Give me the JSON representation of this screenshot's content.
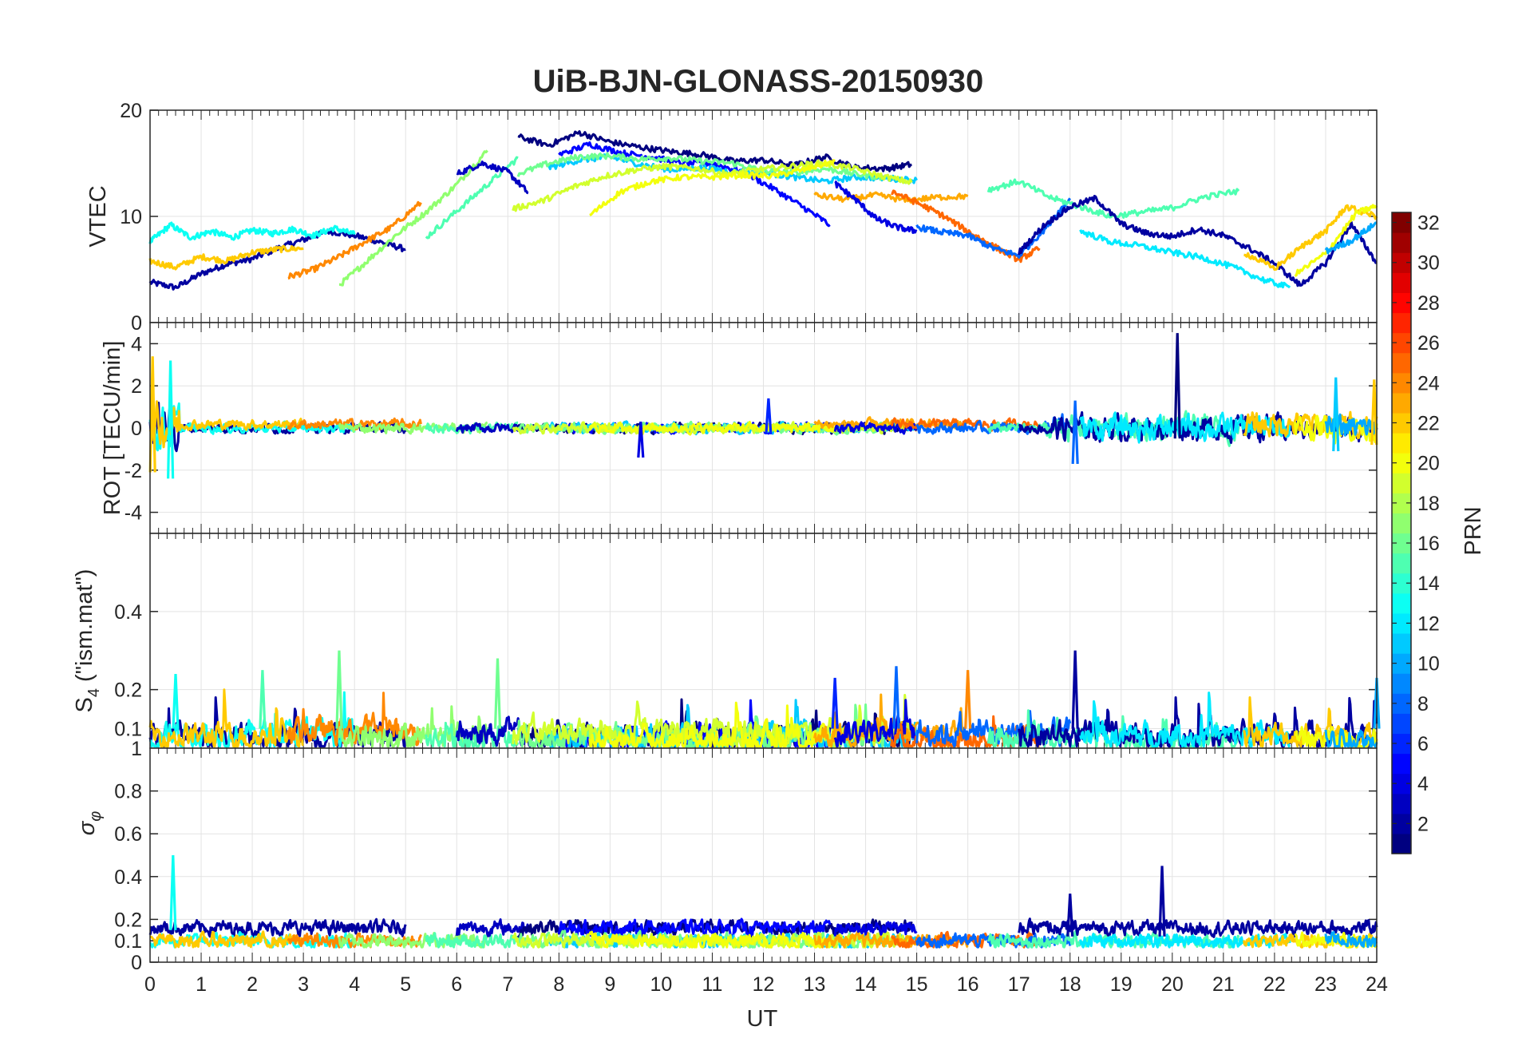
{
  "chart_data": {
    "type": "line",
    "title": "UiB-BJN-GLONASS-20150930",
    "xlabel": "UT",
    "xlim": [
      0,
      24
    ],
    "xticks": [
      "0",
      "1",
      "2",
      "3",
      "4",
      "5",
      "6",
      "7",
      "8",
      "9",
      "10",
      "11",
      "12",
      "13",
      "14",
      "15",
      "16",
      "17",
      "18",
      "19",
      "20",
      "21",
      "22",
      "23",
      "24"
    ],
    "grid": true,
    "panels": [
      {
        "id": "vtec",
        "ylabel": "VTEC",
        "ylim": [
          0,
          20
        ],
        "yticks": [
          0,
          10,
          20
        ],
        "ytick_labels": [
          "0",
          "10",
          "20"
        ],
        "series": [
          {
            "prn": 2,
            "x": [
              0,
              0.5,
              1,
              1.5,
              2,
              2.5,
              3,
              3.5,
              4,
              4.5,
              5
            ],
            "y": [
              3.8,
              3.3,
              4.6,
              5.5,
              6.0,
              7.0,
              7.8,
              8.6,
              8.2,
              7.6,
              6.9
            ]
          },
          {
            "prn": 13,
            "x": [
              0,
              0.4,
              0.8,
              1.2,
              1.6,
              2.0,
              2.4,
              2.8,
              3.2,
              3.6,
              4.0
            ],
            "y": [
              7.6,
              9.2,
              8.0,
              8.6,
              8.0,
              8.7,
              8.4,
              8.8,
              8.2,
              8.9,
              8.3
            ]
          },
          {
            "prn": 22,
            "x": [
              0,
              0.5,
              1,
              1.5,
              2,
              2.5,
              3
            ],
            "y": [
              5.8,
              5.2,
              6.2,
              5.8,
              6.6,
              6.9,
              7.0
            ]
          },
          {
            "prn": 24,
            "x": [
              2.7,
              3.2,
              3.7,
              4.2,
              4.7,
              5.3
            ],
            "y": [
              4.3,
              5.0,
              6.2,
              7.6,
              8.9,
              11.3
            ]
          },
          {
            "prn": 17,
            "x": [
              3.7,
              4.2,
              4.8,
              5.4,
              6.0,
              6.6
            ],
            "y": [
              3.5,
              5.6,
              8.2,
              10.4,
              13.0,
              16.2
            ]
          },
          {
            "prn": 15,
            "x": [
              5.4,
              6.0,
              6.6,
              7.2
            ],
            "y": [
              8.0,
              10.5,
              13.0,
              15.5
            ]
          },
          {
            "prn": 3,
            "x": [
              6.0,
              6.5,
              7.0,
              7.4
            ],
            "y": [
              14.0,
              15.0,
              14.2,
              12.2
            ]
          },
          {
            "prn": 1,
            "x": [
              7.2,
              7.8,
              8.4,
              9.0,
              9.6,
              10.2,
              10.8,
              11.4,
              12.0,
              12.6,
              13.2,
              13.8,
              14.4,
              14.9
            ],
            "y": [
              17.5,
              16.7,
              17.9,
              17.0,
              16.5,
              16.1,
              15.8,
              15.2,
              15.3,
              14.8,
              15.6,
              14.6,
              14.5,
              14.9
            ]
          },
          {
            "prn": 5,
            "x": [
              8.0,
              8.6,
              9.2,
              9.8,
              10.4,
              11.0,
              11.6,
              12.2,
              12.8,
              13.3
            ],
            "y": [
              15.8,
              16.8,
              16.0,
              15.6,
              15.0,
              15.0,
              14.2,
              12.6,
              10.8,
              9.2
            ]
          },
          {
            "prn": 11,
            "x": [
              7.8,
              8.4,
              9.0,
              9.6,
              10.2,
              10.8,
              11.4,
              12.0,
              12.6,
              13.2,
              13.8,
              14.4,
              15.0
            ],
            "y": [
              14.6,
              15.3,
              15.6,
              14.9,
              14.4,
              14.6,
              14.2,
              14.1,
              13.7,
              13.3,
              13.7,
              13.6,
              13.4
            ]
          },
          {
            "prn": 16,
            "x": [
              7.2,
              7.8,
              8.4,
              9.0,
              9.6,
              10.2,
              10.8,
              11.4,
              12.0,
              12.6,
              13.2,
              13.8,
              14.4
            ],
            "y": [
              14.0,
              15.0,
              15.6,
              15.7,
              15.4,
              15.5,
              15.2,
              15.0,
              14.3,
              14.1,
              14.5,
              14.0,
              13.6
            ]
          },
          {
            "prn": 19,
            "x": [
              7.1,
              7.7,
              8.3,
              8.9,
              9.5,
              10.1,
              10.7,
              11.3,
              11.9,
              12.5,
              13.1,
              13.7,
              14.3,
              14.9
            ],
            "y": [
              10.7,
              11.5,
              12.8,
              13.8,
              14.4,
              14.7,
              14.5,
              14.0,
              14.4,
              14.7,
              15.0,
              14.6,
              13.8,
              13.2
            ]
          },
          {
            "prn": 20,
            "x": [
              8.6,
              9.2,
              9.8,
              10.4,
              11.0,
              11.6,
              12.2,
              12.8,
              13.4
            ],
            "y": [
              10.1,
              12.3,
              13.3,
              13.7,
              13.7,
              13.9,
              13.8,
              14.4,
              15.2
            ]
          },
          {
            "prn": 23,
            "x": [
              13.0,
              13.6,
              14.2,
              14.8,
              15.4,
              16.0
            ],
            "y": [
              12.0,
              11.6,
              12.0,
              11.5,
              11.8,
              11.9
            ]
          },
          {
            "prn": 4,
            "x": [
              13.4,
              13.8,
              14.2,
              14.6,
              15.0
            ],
            "y": [
              13.1,
              11.6,
              9.8,
              9.0,
              8.6
            ]
          },
          {
            "prn": 25,
            "x": [
              14.5,
              15.0,
              15.5,
              16.0,
              16.5,
              17.0,
              17.4
            ],
            "y": [
              12.4,
              11.3,
              10.1,
              8.6,
              7.2,
              5.9,
              7.0
            ]
          },
          {
            "prn": 8,
            "x": [
              15.0,
              15.5,
              16.0,
              16.5,
              17.0,
              17.5,
              18.0
            ],
            "y": [
              9.0,
              8.5,
              8.2,
              7.0,
              6.3,
              8.8,
              11.7
            ]
          },
          {
            "prn": 15,
            "x": [
              16.4,
              17.0,
              17.6,
              18.2,
              18.8,
              19.4,
              20.0,
              20.6,
              21.3
            ],
            "y": [
              12.5,
              13.3,
              11.8,
              10.9,
              10.0,
              10.4,
              10.8,
              11.8,
              12.4
            ]
          },
          {
            "prn": 2,
            "x": [
              17.0,
              17.5,
              18.0,
              18.5,
              19.0,
              19.5,
              20.0,
              20.5,
              21.0,
              21.5,
              22.0,
              22.5,
              23.0,
              23.5,
              24.0
            ],
            "y": [
              6.6,
              9.2,
              10.9,
              11.7,
              9.3,
              8.4,
              8.1,
              8.8,
              8.2,
              7.0,
              5.6,
              3.5,
              5.6,
              9.3,
              5.6
            ]
          },
          {
            "prn": 12,
            "x": [
              18.2,
              18.8,
              19.4,
              20.0,
              20.6,
              21.2,
              21.8,
              22.3
            ],
            "y": [
              8.6,
              7.6,
              7.2,
              6.6,
              6.1,
              5.2,
              4.0,
              3.3
            ]
          },
          {
            "prn": 22,
            "x": [
              21.4,
              22.0,
              22.6,
              23.0,
              23.4,
              24.0
            ],
            "y": [
              6.6,
              5.1,
              7.4,
              8.6,
              10.9,
              10.0
            ]
          },
          {
            "prn": 20,
            "x": [
              22.4,
              23.0,
              23.6,
              24.0
            ],
            "y": [
              4.5,
              6.5,
              10.3,
              11.0
            ]
          },
          {
            "prn": 10,
            "x": [
              23.0,
              23.5,
              24.0
            ],
            "y": [
              6.7,
              7.7,
              9.4
            ]
          }
        ]
      },
      {
        "id": "rot",
        "ylabel": "ROT [TECU/min]",
        "ylim": [
          -5,
          5
        ],
        "yticks": [
          -4,
          -2,
          0,
          2,
          4
        ],
        "ytick_labels": [
          "-4",
          "-2",
          "0",
          "2",
          "4"
        ],
        "spikes": [
          {
            "prn": 22,
            "x": 0.05,
            "ymin": -2.1,
            "ymax": 3.4
          },
          {
            "prn": 13,
            "x": 0.4,
            "ymin": -2.4,
            "ymax": 3.2
          },
          {
            "prn": 1,
            "x": 20.1,
            "ymin": -0.5,
            "ymax": 4.5
          },
          {
            "prn": 8,
            "x": 18.1,
            "ymin": -1.7,
            "ymax": 1.3
          },
          {
            "prn": 11,
            "x": 23.2,
            "ymin": -1.1,
            "ymax": 2.4
          },
          {
            "prn": 22,
            "x": 23.95,
            "ymin": -0.8,
            "ymax": 2.3
          },
          {
            "prn": 4,
            "x": 9.6,
            "ymin": -1.4,
            "ymax": 0.3
          },
          {
            "prn": 6,
            "x": 12.1,
            "ymin": -0.3,
            "ymax": 1.4
          }
        ]
      },
      {
        "id": "s4",
        "ylabel": "S4 (\"ism.mat\")",
        "ylabel_main": "S",
        "ylabel_sub": "4",
        "ylabel_rest": " (\"ism.mat\")",
        "ylim": [
          0.05,
          0.6
        ],
        "yticks": [
          0.1,
          0.2,
          0.4
        ],
        "ytick_labels": [
          "0.1",
          "0.2",
          "0.4"
        ],
        "bottom_label": "1",
        "spikes": [
          {
            "prn": 16,
            "x": 3.7,
            "ymin": 0.1,
            "ymax": 0.3
          },
          {
            "prn": 16,
            "x": 6.8,
            "ymin": 0.1,
            "ymax": 0.28
          },
          {
            "prn": 2,
            "x": 18.1,
            "ymin": 0.1,
            "ymax": 0.3
          },
          {
            "prn": 24,
            "x": 16.0,
            "ymin": 0.1,
            "ymax": 0.25
          },
          {
            "prn": 8,
            "x": 14.6,
            "ymin": 0.1,
            "ymax": 0.26
          },
          {
            "prn": 6,
            "x": 13.4,
            "ymin": 0.1,
            "ymax": 0.23
          },
          {
            "prn": 13,
            "x": 0.5,
            "ymin": 0.1,
            "ymax": 0.24
          },
          {
            "prn": 15,
            "x": 2.2,
            "ymin": 0.1,
            "ymax": 0.25
          },
          {
            "prn": 10,
            "x": 24.0,
            "ymin": 0.1,
            "ymax": 0.23
          }
        ]
      },
      {
        "id": "sigma",
        "ylabel": "σ_φ",
        "ylabel_main": "σ",
        "ylabel_sub": "φ",
        "ylim": [
          0,
          1
        ],
        "yticks": [
          0,
          0.1,
          0.2,
          0.4,
          0.6,
          0.8
        ],
        "ytick_labels": [
          "0",
          "0.1",
          "0.2",
          "0.4",
          "0.6",
          "0.8"
        ],
        "spikes": [
          {
            "prn": 13,
            "x": 0.45,
            "ymin": 0.15,
            "ymax": 0.5
          },
          {
            "prn": 2,
            "x": 19.8,
            "ymin": 0.12,
            "ymax": 0.45
          },
          {
            "prn": 2,
            "x": 18.0,
            "ymin": 0.12,
            "ymax": 0.32
          }
        ]
      }
    ],
    "colorbar": {
      "label": "PRN",
      "colormap": "jet",
      "min": 1,
      "max": 32,
      "ticks": [
        "2",
        "4",
        "6",
        "8",
        "10",
        "12",
        "14",
        "16",
        "18",
        "20",
        "22",
        "24",
        "26",
        "28",
        "30",
        "32"
      ]
    }
  }
}
